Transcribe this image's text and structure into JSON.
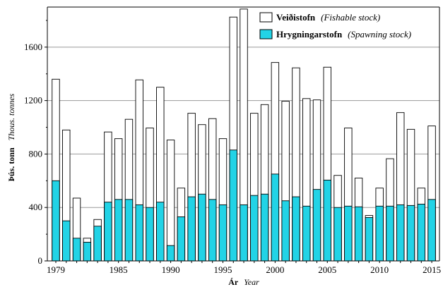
{
  "chart_data": {
    "type": "bar",
    "stacked": false,
    "overlaid": true,
    "x_start_year": 1979,
    "x": [
      1979,
      1980,
      1981,
      1982,
      1983,
      1984,
      1985,
      1986,
      1987,
      1988,
      1989,
      1990,
      1991,
      1992,
      1993,
      1994,
      1995,
      1996,
      1997,
      1998,
      1999,
      2000,
      2001,
      2002,
      2003,
      2004,
      2005,
      2006,
      2007,
      2008,
      2009,
      2010,
      2011,
      2012,
      2013,
      2014,
      2015
    ],
    "series": [
      {
        "name_main": "Veiðistofn",
        "name_sub": "(Fishable stock)",
        "color": "#ffffff",
        "values": [
          1360,
          980,
          470,
          170,
          310,
          965,
          915,
          1060,
          1355,
          995,
          1300,
          905,
          545,
          1105,
          1020,
          1065,
          915,
          1825,
          1885,
          1105,
          1170,
          1485,
          1195,
          1445,
          1215,
          1205,
          1450,
          640,
          995,
          620,
          340,
          545,
          765,
          1110,
          985,
          545,
          1010
        ]
      },
      {
        "name_main": "Hrygningarstofn",
        "name_sub": "(Spawning stock)",
        "color": "#22d3e6",
        "values": [
          600,
          300,
          170,
          140,
          260,
          440,
          460,
          460,
          420,
          400,
          440,
          115,
          330,
          480,
          500,
          460,
          420,
          830,
          420,
          490,
          500,
          650,
          450,
          480,
          410,
          535,
          605,
          400,
          410,
          405,
          325,
          410,
          410,
          420,
          415,
          425,
          460
        ]
      }
    ],
    "x_tick_labels": [
      "1979",
      "1985",
      "1990",
      "1995",
      "2000",
      "2005",
      "2010",
      "2015"
    ],
    "y_tick_labels": [
      "0",
      "400",
      "800",
      "1200",
      "1600"
    ],
    "ylim": [
      0,
      1900
    ],
    "yticks": [
      0,
      400,
      800,
      1200,
      1600
    ],
    "xlabel_main": "Ár",
    "xlabel_sub": "Year",
    "ylabel_main": "Þús. tonn",
    "ylabel_sub": "Thous. tonnes",
    "grid": "horizontal",
    "legend_position": "top-right"
  }
}
